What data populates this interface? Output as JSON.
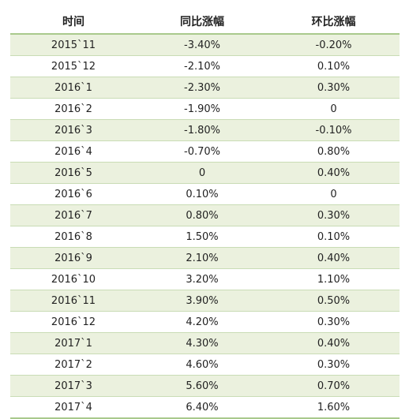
{
  "table": {
    "headers": [
      "时间",
      "同比涨幅",
      "环比涨幅"
    ],
    "rows": [
      {
        "period": "2015`11",
        "yoy": "-3.40%",
        "mom": "-0.20%"
      },
      {
        "period": "2015`12",
        "yoy": "-2.10%",
        "mom": "0.10%"
      },
      {
        "period": "2016`1",
        "yoy": "-2.30%",
        "mom": "0.30%"
      },
      {
        "period": "2016`2",
        "yoy": "-1.90%",
        "mom": "0"
      },
      {
        "period": "2016`3",
        "yoy": "-1.80%",
        "mom": "-0.10%"
      },
      {
        "period": "2016`4",
        "yoy": "-0.70%",
        "mom": "0.80%"
      },
      {
        "period": "2016`5",
        "yoy": "0",
        "mom": "0.40%"
      },
      {
        "period": "2016`6",
        "yoy": "0.10%",
        "mom": "0"
      },
      {
        "period": "2016`7",
        "yoy": "0.80%",
        "mom": "0.30%"
      },
      {
        "period": "2016`8",
        "yoy": "1.50%",
        "mom": "0.10%"
      },
      {
        "period": "2016`9",
        "yoy": "2.10%",
        "mom": "0.40%"
      },
      {
        "period": "2016`10",
        "yoy": "3.20%",
        "mom": "1.10%"
      },
      {
        "period": "2016`11",
        "yoy": "3.90%",
        "mom": "0.50%"
      },
      {
        "period": "2016`12",
        "yoy": "4.20%",
        "mom": "0.30%"
      },
      {
        "period": "2017`1",
        "yoy": "4.30%",
        "mom": "0.40%"
      },
      {
        "period": "2017`2",
        "yoy": "4.60%",
        "mom": "0.30%"
      },
      {
        "period": "2017`3",
        "yoy": "5.60%",
        "mom": "0.70%"
      },
      {
        "period": "2017`4",
        "yoy": "6.40%",
        "mom": "1.60%"
      }
    ]
  }
}
